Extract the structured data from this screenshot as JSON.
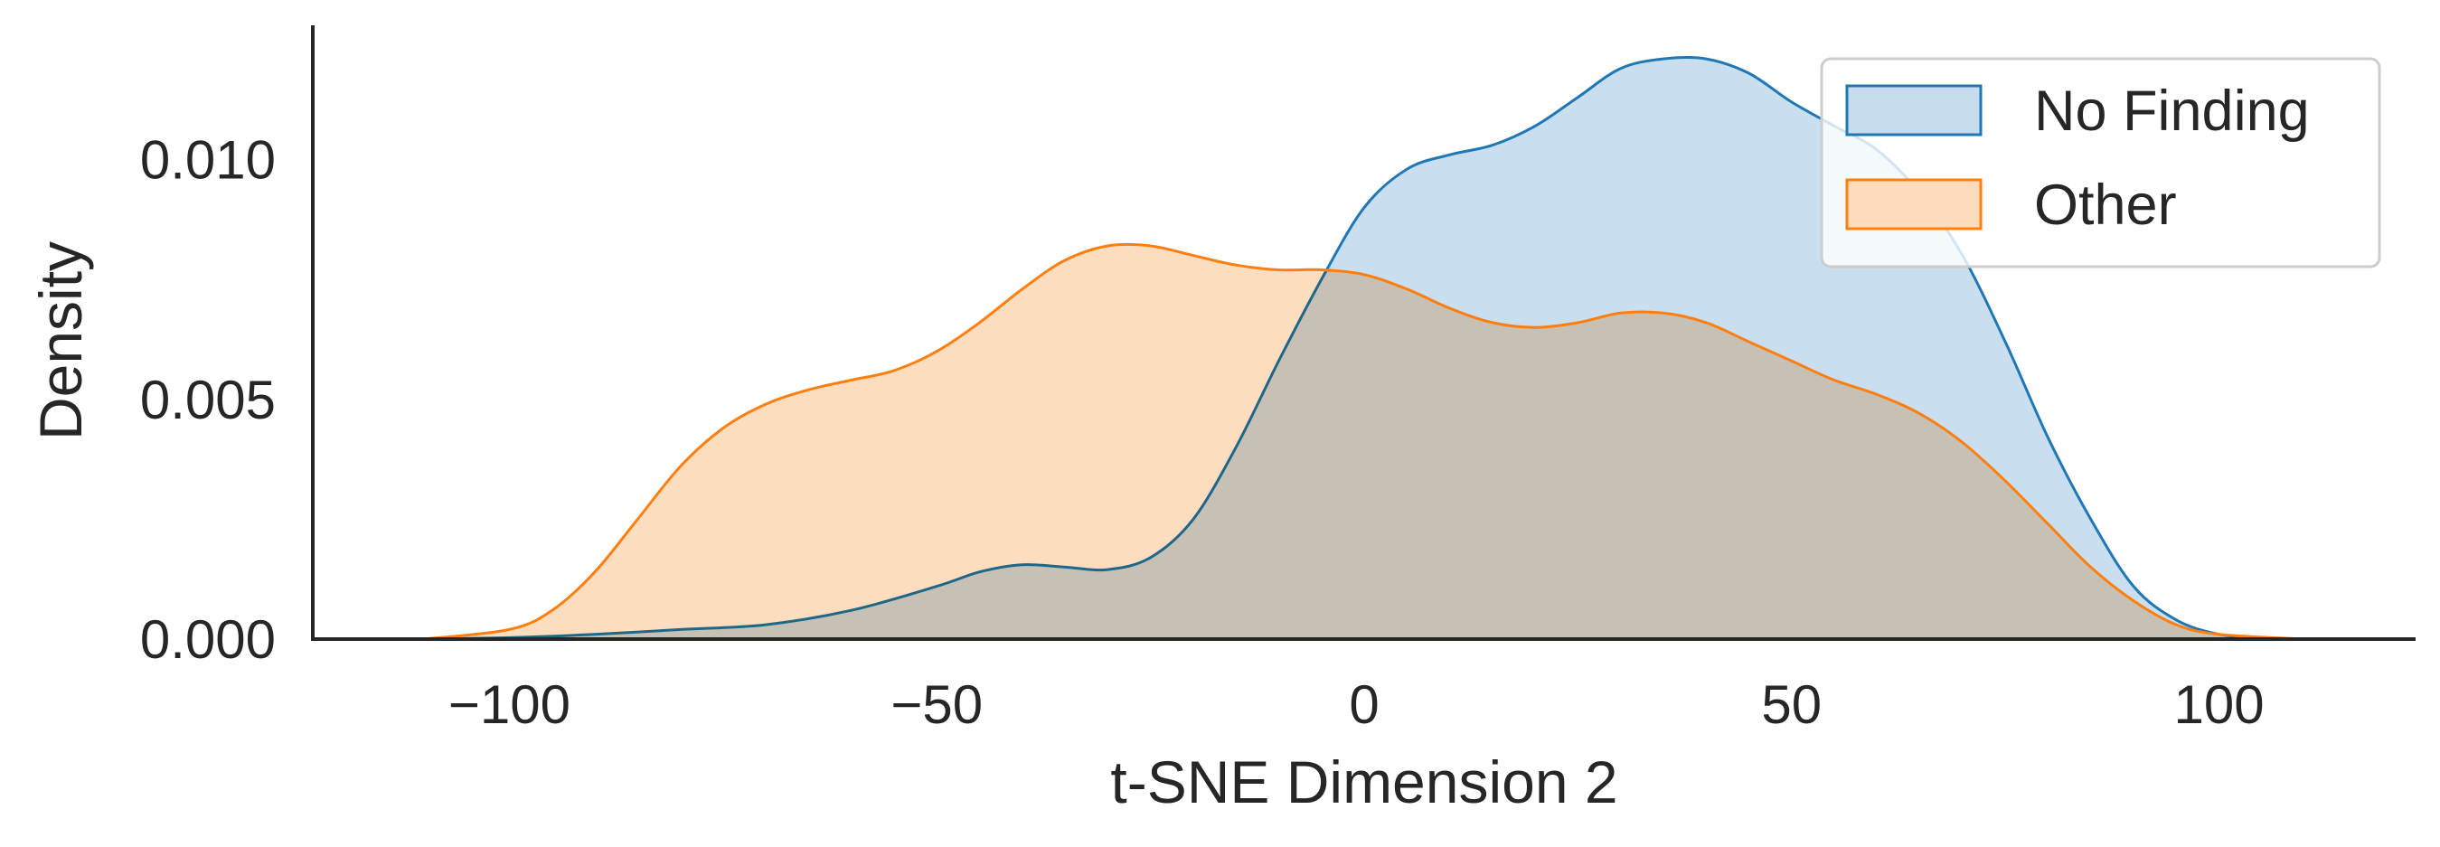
{
  "chart_data": {
    "type": "area",
    "title": "",
    "xlabel": "t-SNE Dimension 2",
    "ylabel": "Density",
    "xlim": [
      -123,
      123
    ],
    "ylim": [
      0,
      0.0128
    ],
    "x_ticks": [
      -100,
      -50,
      0,
      50,
      100
    ],
    "x_tick_labels": [
      "−100",
      "−50",
      "0",
      "50",
      "100"
    ],
    "y_ticks": [
      0.0,
      0.005,
      0.01
    ],
    "y_tick_labels": [
      "0.000",
      "0.005",
      "0.010"
    ],
    "grid": false,
    "legend_position": "top-right",
    "series": [
      {
        "name": "No Finding",
        "color": "#1f77b4",
        "fill_color": "#c6dcee",
        "x": [
          -110,
          -100,
          -90,
          -80,
          -70,
          -60,
          -50,
          -45,
          -40,
          -35,
          -30,
          -25,
          -20,
          -15,
          -10,
          -5,
          0,
          5,
          10,
          15,
          20,
          25,
          30,
          35,
          40,
          45,
          50,
          55,
          60,
          65,
          70,
          75,
          80,
          85,
          90,
          95,
          100,
          105,
          110
        ],
        "y": [
          0.0,
          3e-05,
          0.0001,
          0.0002,
          0.0003,
          0.0006,
          0.0011,
          0.0014,
          0.00155,
          0.0015,
          0.00145,
          0.0017,
          0.0025,
          0.004,
          0.0058,
          0.0075,
          0.009,
          0.0098,
          0.0101,
          0.0103,
          0.0107,
          0.0113,
          0.0119,
          0.0121,
          0.0121,
          0.0118,
          0.0112,
          0.0107,
          0.0102,
          0.0093,
          0.008,
          0.0062,
          0.0042,
          0.0025,
          0.0011,
          0.0004,
          0.0001,
          3e-05,
          0.0
        ]
      },
      {
        "name": "Other",
        "color": "#ff7f0e",
        "fill_color": "#fddbbd",
        "x": [
          -110,
          -100,
          -95,
          -90,
          -85,
          -80,
          -75,
          -70,
          -65,
          -60,
          -55,
          -50,
          -45,
          -40,
          -35,
          -30,
          -25,
          -20,
          -15,
          -10,
          -5,
          0,
          5,
          10,
          15,
          20,
          25,
          30,
          35,
          40,
          45,
          50,
          55,
          60,
          65,
          70,
          75,
          80,
          85,
          90,
          95,
          100,
          110
        ],
        "y": [
          0.0,
          0.0002,
          0.0006,
          0.0014,
          0.0025,
          0.0036,
          0.0044,
          0.0049,
          0.0052,
          0.0054,
          0.0056,
          0.006,
          0.0066,
          0.0073,
          0.0079,
          0.0082,
          0.0082,
          0.008,
          0.0078,
          0.0077,
          0.0077,
          0.0076,
          0.0073,
          0.0069,
          0.0066,
          0.0065,
          0.0066,
          0.0068,
          0.0068,
          0.0066,
          0.0062,
          0.0058,
          0.0054,
          0.0051,
          0.0047,
          0.0041,
          0.0033,
          0.0024,
          0.0015,
          0.0008,
          0.0003,
          0.0001,
          0.0
        ]
      }
    ]
  }
}
